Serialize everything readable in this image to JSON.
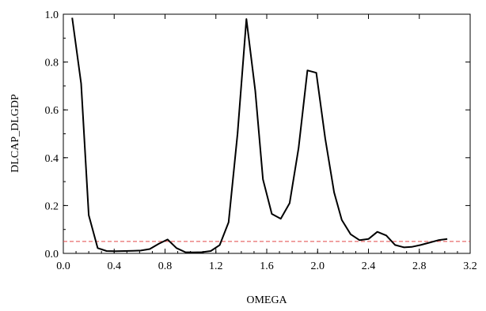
{
  "chart_data": {
    "type": "line",
    "title": "",
    "xlabel": "OMEGA",
    "ylabel": "DLCAP_DLGDP",
    "xlim": [
      0.0,
      3.2
    ],
    "ylim": [
      0.0,
      1.0
    ],
    "xticks": [
      "0.0",
      "0.4",
      "0.8",
      "1.2",
      "1.6",
      "2.0",
      "2.4",
      "2.8",
      "3.2"
    ],
    "yticks": [
      "0.0",
      "0.2",
      "0.4",
      "0.6",
      "0.8",
      "1.0"
    ],
    "grid": false,
    "series": [
      {
        "color": "#000000",
        "x": [
          0.07,
          0.14,
          0.2,
          0.27,
          0.34,
          0.41,
          0.48,
          0.55,
          0.61,
          0.68,
          0.75,
          0.82,
          0.89,
          0.96,
          1.02,
          1.09,
          1.16,
          1.23,
          1.3,
          1.37,
          1.44,
          1.51,
          1.57,
          1.64,
          1.71,
          1.78,
          1.85,
          1.92,
          1.99,
          2.06,
          2.13,
          2.19,
          2.26,
          2.33,
          2.4,
          2.47,
          2.54,
          2.61,
          2.68,
          2.74,
          2.81,
          2.88,
          2.95,
          3.02
        ],
        "values": [
          0.985,
          0.71,
          0.16,
          0.022,
          0.01,
          0.009,
          0.01,
          0.011,
          0.012,
          0.018,
          0.04,
          0.058,
          0.022,
          0.005,
          0.004,
          0.005,
          0.01,
          0.035,
          0.13,
          0.5,
          0.98,
          0.68,
          0.31,
          0.165,
          0.145,
          0.21,
          0.44,
          0.765,
          0.755,
          0.48,
          0.255,
          0.14,
          0.08,
          0.055,
          0.06,
          0.09,
          0.075,
          0.035,
          0.025,
          0.027,
          0.035,
          0.045,
          0.055,
          0.06
        ]
      }
    ],
    "reference_line": {
      "y": 0.05,
      "color": "#e34848"
    }
  }
}
